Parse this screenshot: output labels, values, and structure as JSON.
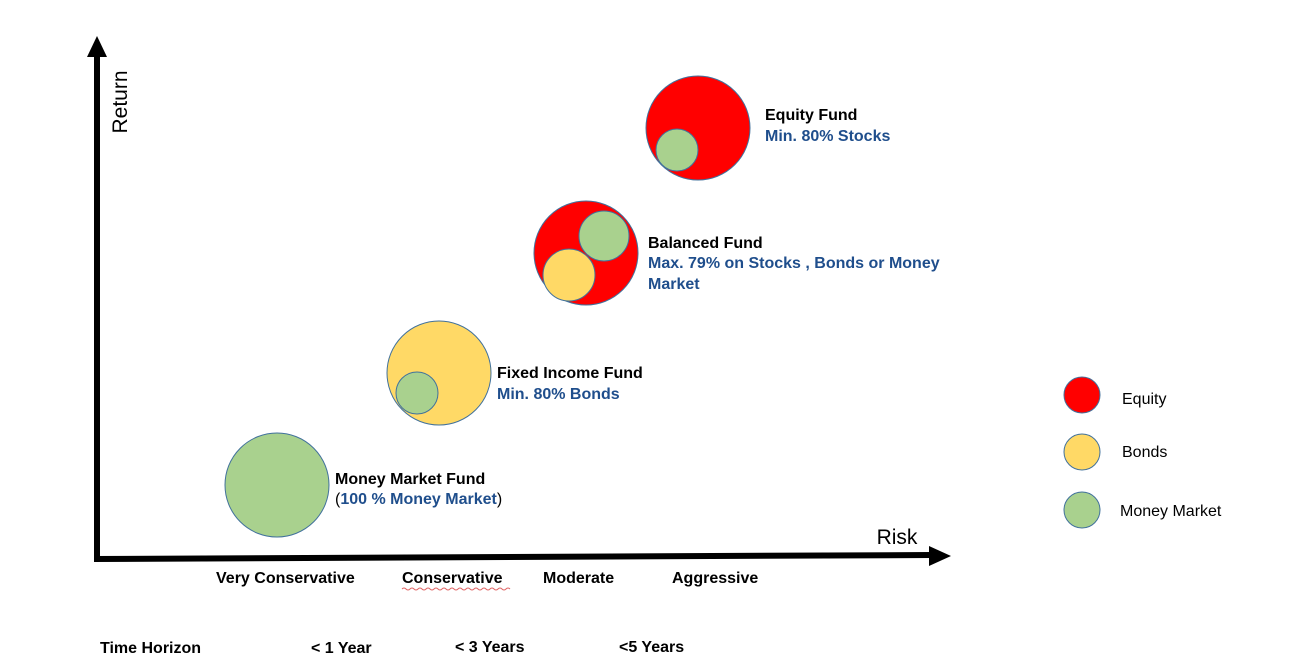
{
  "axes": {
    "y_label": "Return",
    "x_label": "Risk"
  },
  "risk_levels": [
    "Very Conservative",
    "Conservative",
    "Moderate",
    "Aggressive"
  ],
  "time_horizon": {
    "label": "Time Horizon",
    "values": [
      "< 1 Year",
      "< 3 Years",
      "<5 Years"
    ]
  },
  "funds": {
    "money_market": {
      "name": "Money Market Fund",
      "open": "(",
      "detail": "100 % Money Market",
      "close": ")"
    },
    "fixed_income": {
      "name": "Fixed Income Fund",
      "detail": "Min. 80% Bonds"
    },
    "balanced": {
      "name": "Balanced Fund",
      "detail_line1": "Max. 79% on Stocks , Bonds or Money",
      "detail_line2": "Market"
    },
    "equity": {
      "name": "Equity Fund",
      "detail": "Min. 80% Stocks"
    }
  },
  "legend": {
    "equity": "Equity",
    "bonds": "Bonds",
    "money_market": "Money Market"
  },
  "colors": {
    "equity": "#ff0000",
    "bonds": "#ffd966",
    "money_market": "#a9d18e",
    "circle_stroke": "#41719c",
    "detail_text": "#1f4e8c",
    "axis": "#000000"
  }
}
